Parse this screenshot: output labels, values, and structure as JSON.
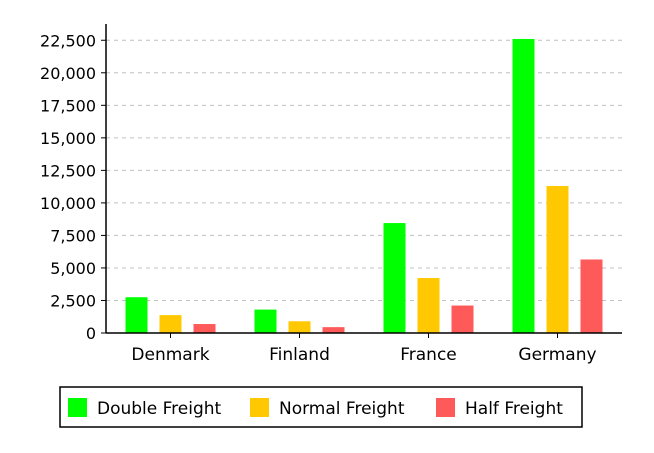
{
  "chart_data": {
    "type": "bar",
    "title": "",
    "xlabel": "",
    "ylabel": "",
    "categories": [
      "Denmark",
      "Finland",
      "France",
      "Germany"
    ],
    "series": [
      {
        "name": "Double Freight",
        "color": "#00ff00",
        "values": [
          2750,
          1800,
          8450,
          22600
        ]
      },
      {
        "name": "Normal Freight",
        "color": "#ffc800",
        "values": [
          1375,
          900,
          4225,
          11300
        ]
      },
      {
        "name": "Half Freight",
        "color": "#ff5a5a",
        "values": [
          690,
          450,
          2110,
          5650
        ]
      }
    ],
    "ylim": [
      0,
      23750
    ],
    "yticks": [
      0,
      2500,
      5000,
      7500,
      10000,
      12500,
      15000,
      17500,
      20000,
      22500
    ],
    "ytick_labels": [
      "0",
      "2,500",
      "5,000",
      "7,500",
      "10,000",
      "12,500",
      "15,000",
      "17,500",
      "20,000",
      "22,500"
    ],
    "grid": true,
    "legend_position": "bottom"
  }
}
